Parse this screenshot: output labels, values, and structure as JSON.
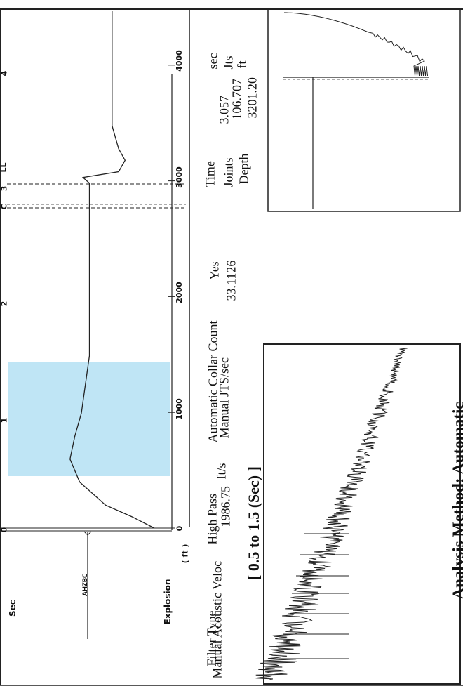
{
  "header": {
    "sec_label": "Sec",
    "explosion_label": "Explosion",
    "ft_label": "( ft )",
    "mirrored_tag": "AHZBC"
  },
  "top_axis": {
    "ticks": [
      "0",
      "1",
      "2",
      "3",
      "4"
    ],
    "markers": [
      "C",
      "LL"
    ]
  },
  "depth_axis": {
    "ticks": [
      "0",
      "1000",
      "2000",
      "3000",
      "4000"
    ]
  },
  "parameters": {
    "filter_type_label": "Filter Type",
    "filter_type_value": "High Pass",
    "velocity_label": "Manual Acoustic Veloc",
    "velocity_value": "1986.75",
    "velocity_unit": "ft/s",
    "collar_count_label": "Automatic Collar Count",
    "collar_count_value": "Yes",
    "jts_label": "Manual JTS/sec",
    "jts_value": "33.1126"
  },
  "results": {
    "time_label": "Time",
    "time_value": "3.057",
    "time_unit": "sec",
    "joints_label": "Joints",
    "joints_value": "106.707",
    "joints_unit": "Jts",
    "depth_label": "Depth",
    "depth_value": "3201.20",
    "depth_unit": "ft"
  },
  "zoom_title": "[ 0.5 to 1.5 (Sec) ]",
  "analysis_method": "Analysis Method:  Automatic",
  "highlight_color": "#bfe5f5",
  "chart_data": [
    {
      "type": "line",
      "title": "",
      "x": [
        0.0,
        0.1,
        0.2,
        0.4,
        0.6,
        0.8,
        1.0,
        1.5,
        2.0,
        2.5,
        2.8,
        2.95,
        3.0,
        3.05,
        3.1,
        3.2,
        3.3,
        3.5,
        4.0,
        4.5
      ],
      "y": [
        0.9,
        0.76,
        0.6,
        0.44,
        0.38,
        0.41,
        0.45,
        0.5,
        0.5,
        0.5,
        0.5,
        0.5,
        0.5,
        0.46,
        0.68,
        0.72,
        0.68,
        0.64,
        0.64,
        0.64
      ],
      "xlim": [
        0,
        4.5
      ],
      "x_unit": "Sec",
      "depth_ticks_ft": [
        0,
        1000,
        2000,
        3000,
        4000
      ],
      "highlight_range_sec": [
        0.5,
        1.5
      ],
      "collar_marker_sec": 2.65,
      "liquid_level_sec": 3.057
    },
    {
      "type": "line",
      "title": "[ 0.5 to 1.5 (Sec) ]",
      "xlim": [
        0.5,
        1.5
      ]
    },
    {
      "type": "line",
      "title": "",
      "vline": 3.057
    }
  ]
}
